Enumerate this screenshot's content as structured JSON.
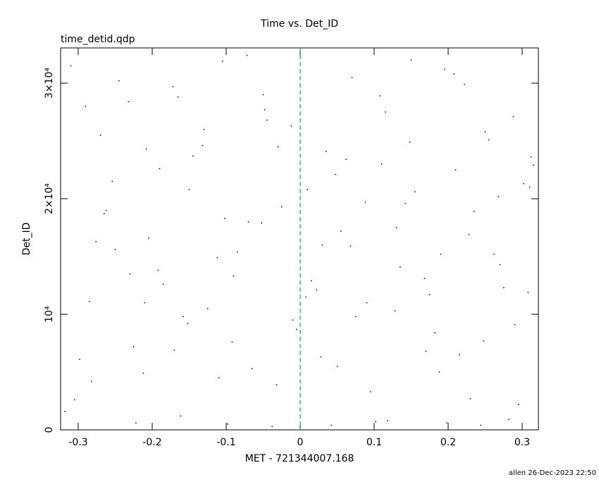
{
  "chart_data": {
    "type": "scatter",
    "title": "Time vs. Det_ID",
    "subtitle": "time_detid.qdp",
    "xlabel": "MET - 721344007.168",
    "ylabel": "Det_ID",
    "footer": "allen 26-Dec-2023 22:50",
    "xlim": [
      -0.3238,
      0.3219
    ],
    "ylim": [
      0,
      33050
    ],
    "xticks": [
      -0.3,
      -0.2,
      -0.1,
      0,
      0.1,
      0.2,
      0.3
    ],
    "yticks": [
      0,
      {
        "value": 10000,
        "label": "10⁴"
      },
      {
        "value": 20000,
        "label": "2×10⁴"
      },
      {
        "value": 30000,
        "label": "3×10⁴"
      }
    ],
    "vline": 0,
    "vline_color": "#0aa0a0",
    "color": "#000000",
    "x": [
      -0.31,
      -0.29,
      -0.27,
      -0.25,
      -0.23,
      -0.21,
      -0.19,
      -0.17,
      -0.15,
      -0.13,
      -0.11,
      -0.09,
      -0.07,
      -0.05,
      -0.03,
      -0.01,
      0.01,
      0.03,
      0.05,
      0.07,
      0.09,
      0.11,
      0.13,
      0.15,
      0.17,
      0.19,
      0.21,
      0.23,
      0.25,
      0.27,
      0.29,
      0.31,
      -0.305,
      -0.285,
      -0.265,
      -0.245,
      -0.225,
      -0.205,
      -0.185,
      -0.165,
      -0.145,
      -0.125,
      -0.105,
      -0.085,
      -0.065,
      -0.045,
      -0.025,
      -0.005,
      0.015,
      0.035,
      0.055,
      0.075,
      0.095,
      0.115,
      0.135,
      0.155,
      0.175,
      0.195,
      0.215,
      0.235,
      0.255,
      0.275,
      0.295,
      0.315,
      -0.298,
      -0.276,
      -0.254,
      -0.232,
      -0.212,
      -0.192,
      -0.172,
      -0.152,
      -0.132,
      -0.112,
      -0.092,
      -0.072,
      -0.052,
      -0.032,
      -0.012,
      0.008,
      0.028,
      0.048,
      0.068,
      0.088,
      0.108,
      0.128,
      0.148,
      0.168,
      0.188,
      0.208,
      0.228,
      0.248,
      0.268,
      0.288,
      0.308,
      -0.318,
      -0.262,
      -0.208,
      -0.158,
      -0.102,
      -0.048,
      0.022,
      0.062,
      0.102,
      0.142,
      0.182,
      0.222,
      0.262,
      0.302,
      -0.282,
      -0.222,
      -0.162,
      -0.098,
      -0.038,
      0.042,
      0.118,
      0.198,
      0.244,
      0.282,
      0.312
    ],
    "y": [
      31500,
      28000,
      25500,
      15600,
      13500,
      11000,
      22600,
      6900,
      20800,
      26000,
      4500,
      13300,
      18000,
      29000,
      24500,
      9500,
      20800,
      16000,
      5500,
      30500,
      11000,
      23000,
      17500,
      32000,
      6800,
      15200,
      22500,
      2700,
      25800,
      14300,
      9100,
      21000,
      2600,
      11100,
      18700,
      30200,
      7200,
      16600,
      12600,
      28800,
      23700,
      10500,
      31900,
      15400,
      5300,
      26800,
      19300,
      8700,
      12900,
      24100,
      17200,
      9800,
      3300,
      27500,
      14100,
      20600,
      11700,
      31200,
      6500,
      18900,
      25100,
      12300,
      2200,
      22900,
      6100,
      16300,
      21500,
      28400,
      4900,
      13800,
      29700,
      9200,
      24600,
      14900,
      7600,
      32400,
      17900,
      3900,
      26300,
      11500,
      6300,
      22100,
      15900,
      19700,
      28900,
      10300,
      24900,
      13100,
      5000,
      30800,
      16900,
      7700,
      20200,
      27100,
      11900,
      1600,
      19000,
      24300,
      9800,
      18300,
      27700,
      12100,
      23400,
      700,
      19600,
      8400,
      29900,
      15200,
      21300,
      4200,
      600,
      1200,
      500,
      300,
      400,
      800,
      600,
      400,
      900,
      23600
    ]
  }
}
